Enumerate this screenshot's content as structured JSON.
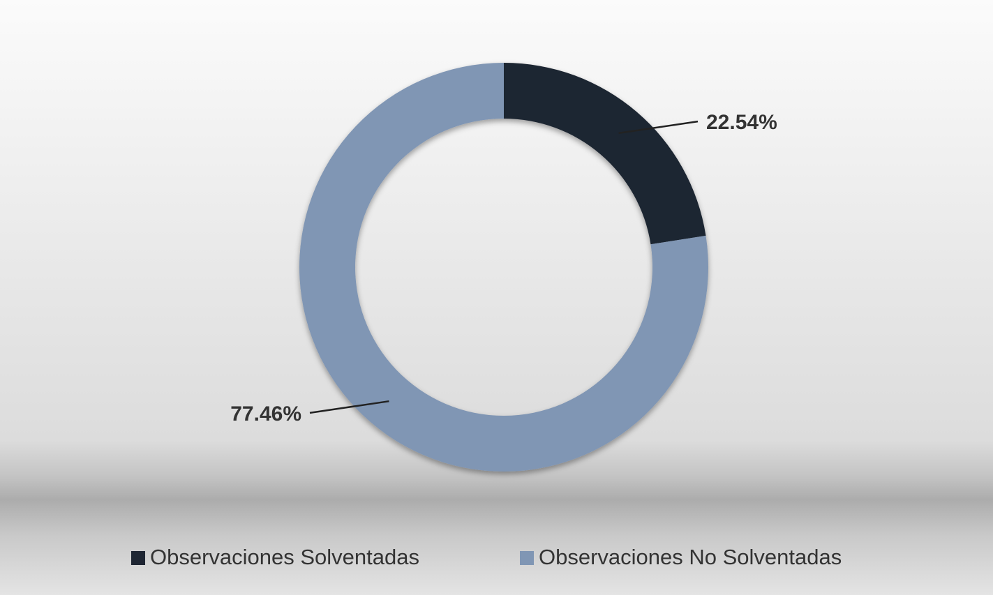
{
  "chart_data": {
    "type": "pie",
    "donut": true,
    "categories": [
      "Observaciones Solventadas",
      "Observaciones No Solventadas"
    ],
    "values": [
      22.54,
      77.46
    ],
    "value_labels": [
      "22.54%",
      "77.46%"
    ],
    "colors": [
      "#1f2633",
      "#8096b4"
    ],
    "legend": "bottom"
  }
}
